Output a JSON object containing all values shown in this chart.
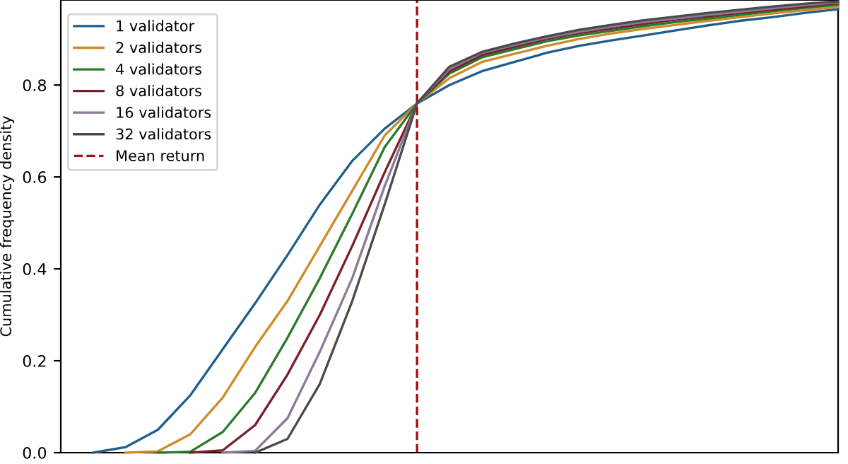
{
  "chart_data": {
    "type": "line",
    "ylabel": "Cumulative frequency density",
    "categories": [
      null,
      null,
      null,
      null,
      null,
      null,
      null,
      null,
      null,
      null,
      null,
      null,
      null,
      null,
      null,
      null,
      null,
      null,
      null,
      null,
      null,
      null,
      null,
      null
    ],
    "ylim": [
      0,
      0.985
    ],
    "yticks": [
      {
        "value": 0,
        "label": "0.0"
      },
      {
        "value": 0.2,
        "label": "0.2"
      },
      {
        "value": 0.4,
        "label": "0.4"
      },
      {
        "value": 0.6,
        "label": "0.6"
      },
      {
        "value": 0.8,
        "label": "0.8"
      }
    ],
    "series": [
      {
        "name": "1 validator",
        "color": "#1f5f8b",
        "values": [
          0,
          0.012,
          0.05,
          0.125,
          0.225,
          0.325,
          0.43,
          0.54,
          0.635,
          0.705,
          0.76,
          0.8,
          0.83,
          0.85,
          0.87,
          0.885,
          0.897,
          0.908,
          0.919,
          0.93,
          0.94,
          0.948,
          0.957,
          0.965
        ]
      },
      {
        "name": "2 validators",
        "color": "#d08a2a",
        "values": [
          null,
          0,
          0.003,
          0.04,
          0.12,
          0.23,
          0.33,
          0.45,
          0.57,
          0.69,
          0.76,
          0.815,
          0.85,
          0.868,
          0.885,
          0.9,
          0.912,
          0.922,
          0.931,
          0.94,
          0.948,
          0.956,
          0.963,
          0.97
        ]
      },
      {
        "name": "4 validators",
        "color": "#2a7a2a",
        "values": [
          null,
          null,
          0,
          0.002,
          0.045,
          0.13,
          0.25,
          0.38,
          0.52,
          0.665,
          0.76,
          0.825,
          0.86,
          0.878,
          0.895,
          0.908,
          0.918,
          0.928,
          0.937,
          0.945,
          0.953,
          0.961,
          0.968,
          0.975
        ]
      },
      {
        "name": "8 validators",
        "color": "#7a1f2a",
        "values": [
          null,
          null,
          null,
          0,
          0.005,
          0.06,
          0.17,
          0.3,
          0.45,
          0.61,
          0.76,
          0.83,
          0.865,
          0.883,
          0.9,
          0.913,
          0.923,
          0.933,
          0.942,
          0.95,
          0.957,
          0.964,
          0.971,
          0.978
        ]
      },
      {
        "name": "16 validators",
        "color": "#8a7a9a",
        "values": [
          null,
          null,
          null,
          null,
          0,
          0.004,
          0.075,
          0.22,
          0.38,
          0.58,
          0.76,
          0.835,
          0.87,
          0.887,
          0.903,
          0.916,
          0.927,
          0.937,
          0.945,
          0.953,
          0.96,
          0.967,
          0.974,
          0.98
        ]
      },
      {
        "name": "32 validators",
        "color": "#4a4a4a",
        "values": [
          null,
          null,
          null,
          null,
          null,
          0,
          0.03,
          0.15,
          0.33,
          0.54,
          0.76,
          0.84,
          0.872,
          0.89,
          0.906,
          0.92,
          0.931,
          0.941,
          0.949,
          0.957,
          0.964,
          0.971,
          0.977,
          0.982
        ]
      }
    ],
    "ref_lines": [
      {
        "axis": "x",
        "label": "Mean return",
        "color": "#a01010",
        "line_style": "dashed"
      }
    ],
    "legend": "top left",
    "grid": false,
    "tick_labels": "y"
  }
}
